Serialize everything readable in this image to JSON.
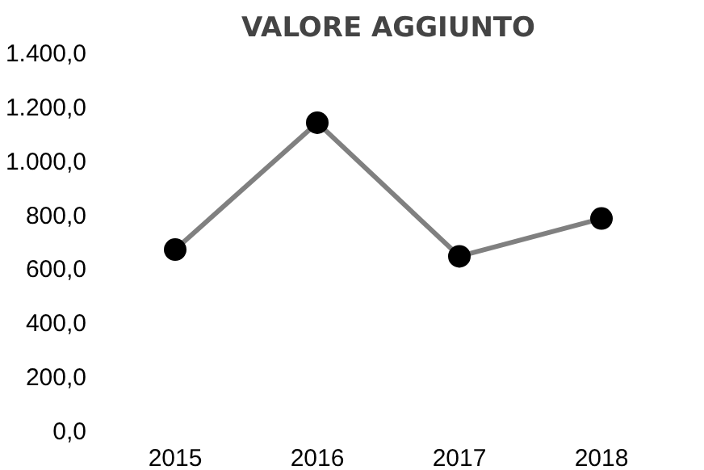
{
  "chart_data": {
    "type": "line",
    "title": "VALORE AGGIUNTO",
    "categories": [
      "2015",
      "2016",
      "2017",
      "2018"
    ],
    "series": [
      {
        "color": "#808080",
        "values": [
          670,
          1140,
          645,
          785
        ]
      }
    ],
    "marker": "circle",
    "ylim": [
      0,
      1400
    ],
    "yticks": [
      {
        "value": 0,
        "label": "0,0"
      },
      {
        "value": 200,
        "label": "200,0"
      },
      {
        "value": 400,
        "label": "400,0"
      },
      {
        "value": 600,
        "label": "600,0"
      },
      {
        "value": 800,
        "label": "800,0"
      },
      {
        "value": 1000,
        "label": "1.000,0"
      },
      {
        "value": 1200,
        "label": "1.200,0"
      },
      {
        "value": 1400,
        "label": "1.400,0"
      }
    ],
    "grid": false
  }
}
